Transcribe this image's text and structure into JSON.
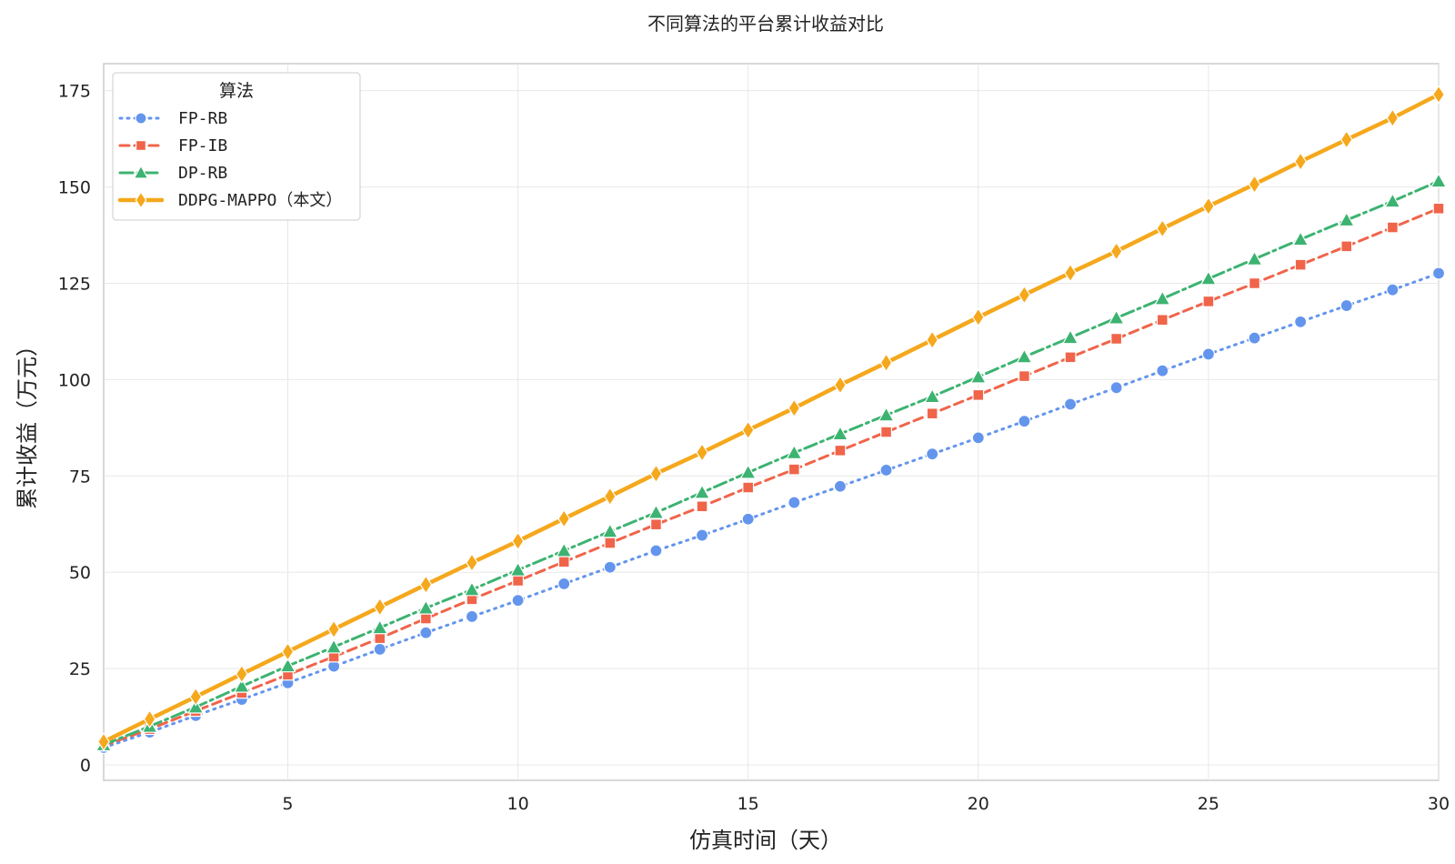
{
  "chart_data": {
    "type": "line",
    "title": "不同算法的平台累计收益对比",
    "xlabel": "仿真时间（天）",
    "ylabel": "累计收益（万元）",
    "xlim": [
      1,
      30
    ],
    "ylim": [
      -4,
      182
    ],
    "x_ticks": [
      5,
      10,
      15,
      20,
      25,
      30
    ],
    "y_ticks": [
      0,
      25,
      50,
      75,
      100,
      125,
      150,
      175
    ],
    "grid": true,
    "legend": {
      "title": "算法",
      "placement": "top-left"
    },
    "x": [
      1,
      2,
      3,
      4,
      5,
      6,
      7,
      8,
      9,
      10,
      11,
      12,
      13,
      14,
      15,
      16,
      17,
      18,
      19,
      20,
      21,
      22,
      23,
      24,
      25,
      26,
      27,
      28,
      29,
      30
    ],
    "series": [
      {
        "name": "FP-RB",
        "color": "#6495ED",
        "marker": "circle",
        "linestyle": "dotted",
        "values": [
          4.5,
          8.5,
          12.8,
          17.0,
          21.3,
          25.6,
          30.0,
          34.3,
          38.5,
          42.7,
          47.0,
          51.3,
          55.6,
          59.6,
          63.8,
          68.1,
          72.3,
          76.5,
          80.7,
          84.9,
          89.2,
          93.6,
          97.9,
          102.3,
          106.6,
          110.8,
          115.0,
          119.2,
          123.3,
          127.6
        ]
      },
      {
        "name": "FP-IB",
        "color": "#F0644A",
        "marker": "square",
        "linestyle": "dashed",
        "values": [
          5.0,
          9.3,
          14.0,
          18.7,
          23.4,
          28.1,
          32.9,
          38.0,
          43.0,
          47.8,
          52.7,
          57.6,
          62.4,
          67.1,
          72.0,
          76.7,
          81.6,
          86.4,
          91.2,
          96.0,
          100.9,
          105.8,
          110.6,
          115.5,
          120.3,
          125.0,
          129.8,
          134.6,
          139.5,
          144.4
        ]
      },
      {
        "name": "DP-RB",
        "color": "#3CB371",
        "marker": "triangle",
        "linestyle": "dashdot",
        "values": [
          5.2,
          10.0,
          15.0,
          20.4,
          25.7,
          30.6,
          35.6,
          40.7,
          45.5,
          50.6,
          55.6,
          60.6,
          65.5,
          70.7,
          75.9,
          81.0,
          85.9,
          90.8,
          95.6,
          100.7,
          105.9,
          110.9,
          116.0,
          121.0,
          126.2,
          131.3,
          136.4,
          141.4,
          146.3,
          151.5
        ]
      },
      {
        "name": "DDPG-MAPPO（本文）",
        "color": "#F5A81C",
        "marker": "diamond",
        "linestyle": "solid",
        "values": [
          6.0,
          11.9,
          17.7,
          23.6,
          29.4,
          35.2,
          41.0,
          46.8,
          52.5,
          58.1,
          63.9,
          69.7,
          75.6,
          81.1,
          86.9,
          92.6,
          98.6,
          104.4,
          110.3,
          116.2,
          122.0,
          127.7,
          133.3,
          139.2,
          145.0,
          150.7,
          156.6,
          162.3,
          167.9,
          174.0
        ]
      }
    ]
  }
}
